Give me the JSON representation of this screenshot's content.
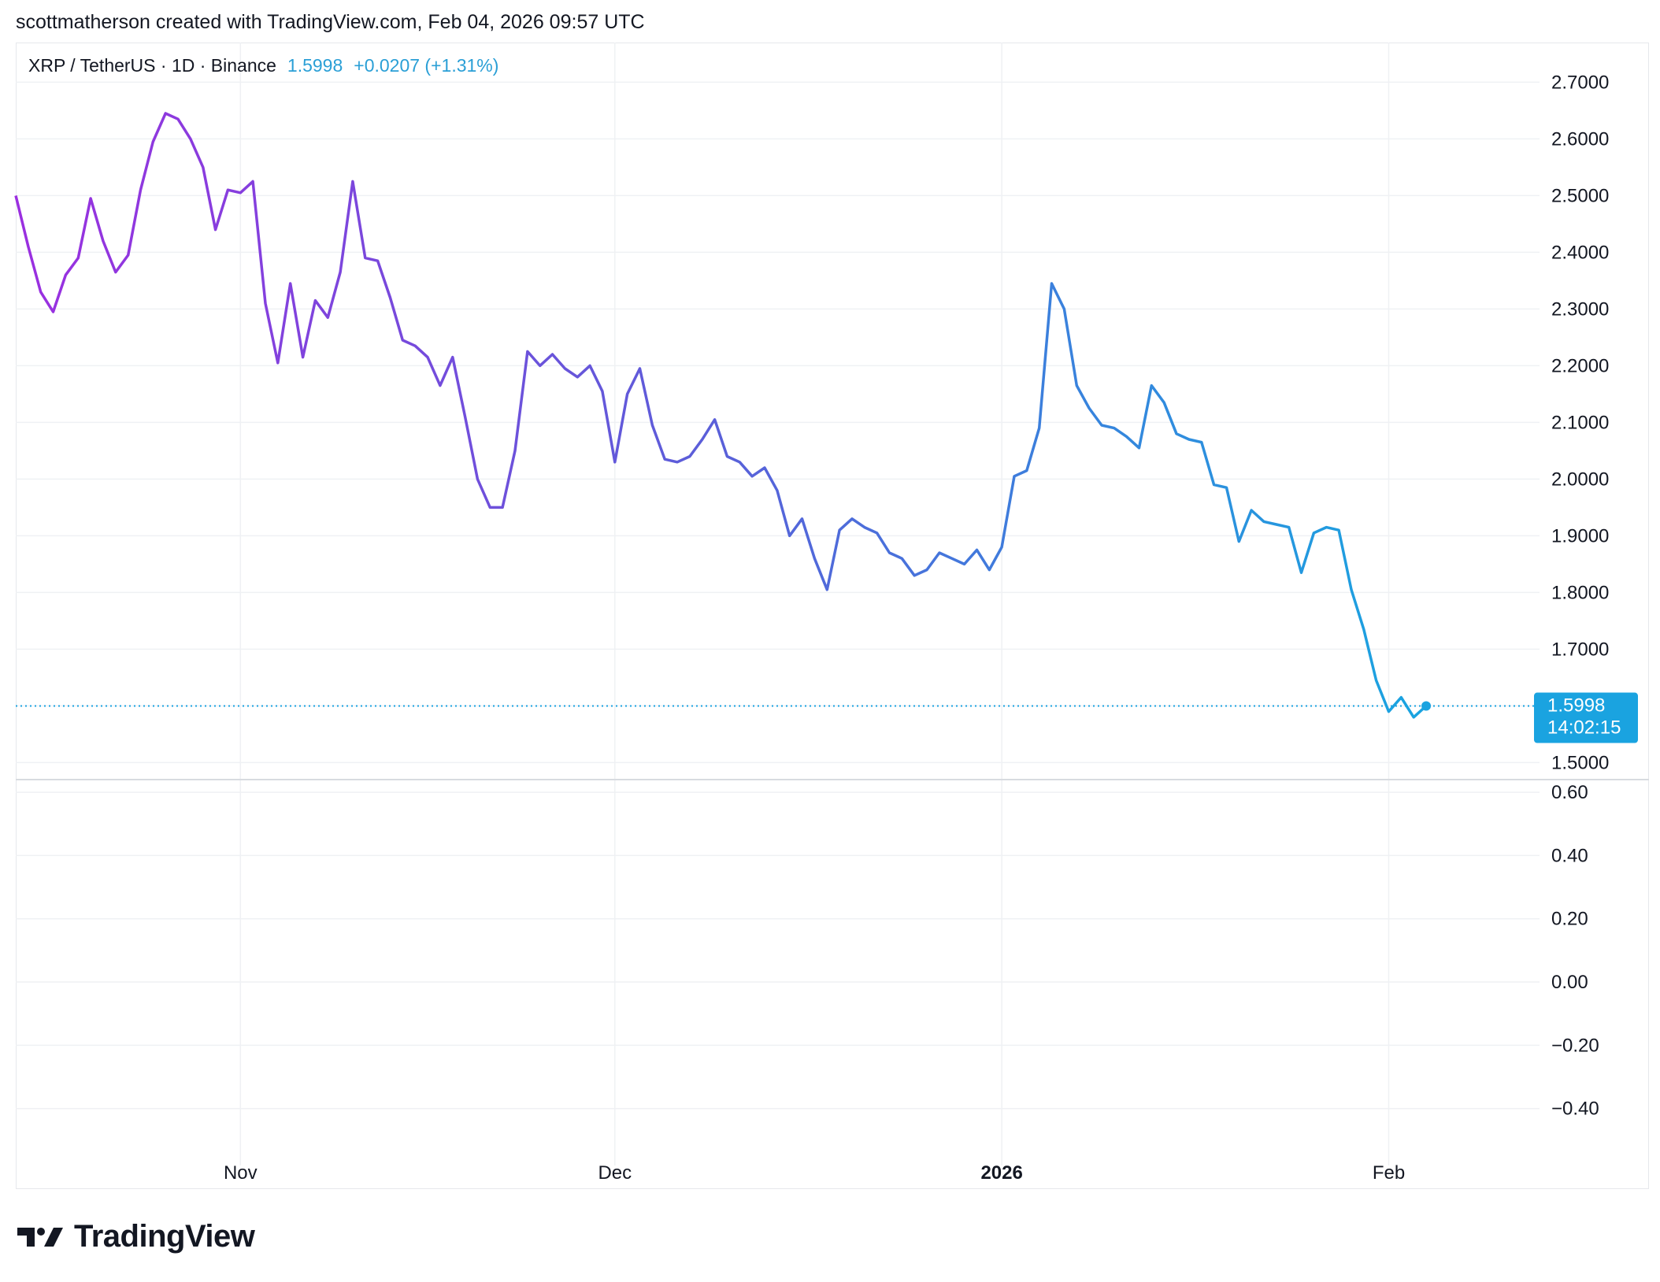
{
  "caption": "scottmatherson created with TradingView.com, Feb 04, 2026 09:57 UTC",
  "legend": {
    "symbol": "XRP / TetherUS · 1D · Binance",
    "last": "1.5998",
    "change": "+0.0207 (+1.31%)"
  },
  "price_tag": {
    "price": "1.5998",
    "countdown": "14:02:15"
  },
  "brand": {
    "name": "TradingView"
  },
  "colors": {
    "line_start": "#9b2fe0",
    "line_mid": "#5a5fd9",
    "line_end": "#1aa3e0",
    "tag": "#1aa3e0",
    "grid": "#eff1f4"
  },
  "chart_data": [
    {
      "type": "line",
      "title": "XRP / TetherUS · 1D · Binance",
      "x_unit": "date",
      "x_ticks": [
        "Nov",
        "Dec",
        "2026",
        "Feb"
      ],
      "y_ticks": [
        "2.7000",
        "2.6000",
        "2.5000",
        "2.4000",
        "2.3000",
        "2.2000",
        "2.1000",
        "2.0000",
        "1.9000",
        "1.8000",
        "1.7000",
        "1.5000"
      ],
      "ylim": [
        1.47,
        2.77
      ],
      "last_value": 1.5998,
      "series": [
        {
          "x": [
            "2025-10-14",
            "2025-10-15",
            "2025-10-16",
            "2025-10-17",
            "2025-10-18",
            "2025-10-19",
            "2025-10-20",
            "2025-10-21",
            "2025-10-22",
            "2025-10-23",
            "2025-10-24",
            "2025-10-25",
            "2025-10-26",
            "2025-10-27",
            "2025-10-28",
            "2025-10-29",
            "2025-10-30",
            "2025-10-31",
            "2025-11-01",
            "2025-11-02",
            "2025-11-03",
            "2025-11-04",
            "2025-11-05",
            "2025-11-06",
            "2025-11-07",
            "2025-11-08",
            "2025-11-09",
            "2025-11-10",
            "2025-11-11",
            "2025-11-12",
            "2025-11-13",
            "2025-11-14",
            "2025-11-15",
            "2025-11-16",
            "2025-11-17",
            "2025-11-18",
            "2025-11-19",
            "2025-11-20",
            "2025-11-21",
            "2025-11-22",
            "2025-11-23",
            "2025-11-24",
            "2025-11-25",
            "2025-11-26",
            "2025-11-27",
            "2025-11-28",
            "2025-11-29",
            "2025-11-30",
            "2025-12-01",
            "2025-12-02",
            "2025-12-03",
            "2025-12-04",
            "2025-12-05",
            "2025-12-06",
            "2025-12-07",
            "2025-12-08",
            "2025-12-09",
            "2025-12-10",
            "2025-12-11",
            "2025-12-12",
            "2025-12-13",
            "2025-12-14",
            "2025-12-15",
            "2025-12-16",
            "2025-12-17",
            "2025-12-18",
            "2025-12-19",
            "2025-12-20",
            "2025-12-21",
            "2025-12-22",
            "2025-12-23",
            "2025-12-24",
            "2025-12-25",
            "2025-12-26",
            "2025-12-27",
            "2025-12-28",
            "2025-12-29",
            "2025-12-30",
            "2025-12-31",
            "2026-01-01",
            "2026-01-02",
            "2026-01-03",
            "2026-01-04",
            "2026-01-05",
            "2026-01-06",
            "2026-01-07",
            "2026-01-08",
            "2026-01-09",
            "2026-01-10",
            "2026-01-11",
            "2026-01-12",
            "2026-01-13",
            "2026-01-14",
            "2026-01-15",
            "2026-01-16",
            "2026-01-17",
            "2026-01-18",
            "2026-01-19",
            "2026-01-20",
            "2026-01-21",
            "2026-01-22",
            "2026-01-23",
            "2026-01-24",
            "2026-01-25",
            "2026-01-26",
            "2026-01-27",
            "2026-01-28",
            "2026-01-29",
            "2026-01-30",
            "2026-01-31",
            "2026-02-01",
            "2026-02-02",
            "2026-02-03",
            "2026-02-04"
          ],
          "values": [
            2.5,
            2.41,
            2.33,
            2.295,
            2.36,
            2.39,
            2.495,
            2.42,
            2.365,
            2.395,
            2.51,
            2.595,
            2.645,
            2.635,
            2.6,
            2.55,
            2.44,
            2.51,
            2.505,
            2.525,
            2.31,
            2.205,
            2.345,
            2.215,
            2.315,
            2.285,
            2.365,
            2.525,
            2.39,
            2.385,
            2.32,
            2.245,
            2.235,
            2.215,
            2.165,
            2.215,
            2.11,
            2.0,
            1.95,
            1.95,
            2.05,
            2.225,
            2.2,
            2.22,
            2.195,
            2.18,
            2.2,
            2.155,
            2.03,
            2.15,
            2.195,
            2.095,
            2.035,
            2.03,
            2.04,
            2.07,
            2.105,
            2.04,
            2.03,
            2.005,
            2.02,
            1.98,
            1.9,
            1.93,
            1.86,
            1.805,
            1.91,
            1.93,
            1.915,
            1.905,
            1.87,
            1.86,
            1.83,
            1.84,
            1.87,
            1.86,
            1.85,
            1.875,
            1.84,
            1.88,
            2.005,
            2.015,
            2.09,
            2.345,
            2.3,
            2.165,
            2.125,
            2.095,
            2.09,
            2.075,
            2.055,
            2.165,
            2.135,
            2.08,
            2.07,
            2.065,
            1.99,
            1.985,
            1.89,
            1.945,
            1.925,
            1.92,
            1.915,
            1.835,
            1.905,
            1.915,
            1.91,
            1.805,
            1.735,
            1.645,
            1.59,
            1.615,
            1.58,
            1.5998
          ]
        }
      ]
    },
    {
      "type": "line",
      "y_ticks": [
        "0.60",
        "0.40",
        "0.20",
        "0.00",
        "−0.20",
        "−0.40"
      ],
      "ylim": [
        -0.58,
        0.64
      ],
      "series": []
    }
  ]
}
